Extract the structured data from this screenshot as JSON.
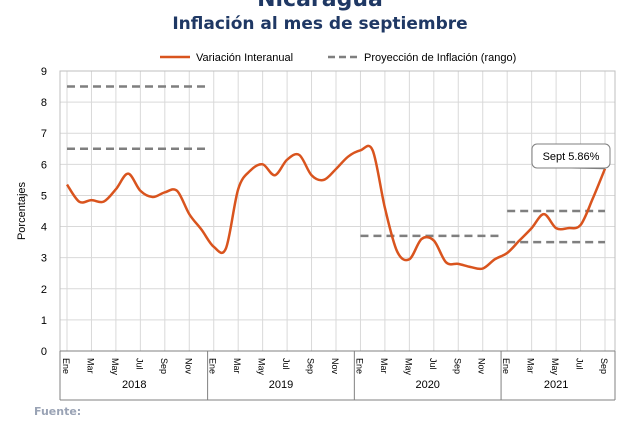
{
  "header": {
    "top_title": "Nicaragua",
    "chart_title": "Inflación al mes de septiembre",
    "footer_label": "Fuente:"
  },
  "colors": {
    "series_line": "#d9541e",
    "projection": "#7f7f7f",
    "grid": "#d9d9d9",
    "title": "#1f3864"
  },
  "chart_data": {
    "type": "line",
    "ylabel": "Porcentajes",
    "ylim": [
      0,
      9
    ],
    "yticks": [
      0,
      1,
      2,
      3,
      4,
      5,
      6,
      7,
      8,
      9
    ],
    "grid": true,
    "legend_position": "top",
    "x_tick_labels": [
      "Ene",
      "Mar",
      "May",
      "Jul",
      "Sep",
      "Nov",
      "Ene",
      "Mar",
      "May",
      "Jul",
      "Sep",
      "Nov",
      "Ene",
      "Mar",
      "May",
      "Jul",
      "Sep",
      "Nov",
      "Ene",
      "Mar",
      "May",
      "Jul",
      "Sep"
    ],
    "x_tick_months": [
      0,
      2,
      4,
      6,
      8,
      10,
      12,
      14,
      16,
      18,
      20,
      22,
      24,
      26,
      28,
      30,
      32,
      34,
      36,
      38,
      40,
      42,
      44
    ],
    "years": [
      {
        "label": "2018",
        "start": 0,
        "end": 11
      },
      {
        "label": "2019",
        "start": 12,
        "end": 23
      },
      {
        "label": "2020",
        "start": 24,
        "end": 35
      },
      {
        "label": "2021",
        "start": 36,
        "end": 44
      }
    ],
    "series": [
      {
        "name": "Variación Interanual",
        "values": [
          5.35,
          4.8,
          4.85,
          4.8,
          5.2,
          5.7,
          5.15,
          4.95,
          5.1,
          5.15,
          4.4,
          3.9,
          3.35,
          3.3,
          5.2,
          5.8,
          6.0,
          5.65,
          6.15,
          6.3,
          5.65,
          5.5,
          5.85,
          6.25,
          6.45,
          6.45,
          4.6,
          3.2,
          2.95,
          3.6,
          3.55,
          2.85,
          2.8,
          2.7,
          2.65,
          2.95,
          3.15,
          3.55,
          3.95,
          4.4,
          3.95,
          3.95,
          4.05,
          4.9,
          5.86
        ]
      },
      {
        "name": "Proyección de Inflación (rango)",
        "ranges": [
          {
            "start": 0,
            "end": 11.5,
            "low": 6.5,
            "high": 8.5
          },
          {
            "start": 24,
            "end": 35.5,
            "low": 3.7,
            "high": 3.7
          },
          {
            "start": 36,
            "end": 44,
            "low": 3.5,
            "high": 4.5
          }
        ]
      }
    ],
    "annotations": [
      {
        "text": "Sept 5.86%",
        "month": 44,
        "value": 5.86
      }
    ]
  }
}
